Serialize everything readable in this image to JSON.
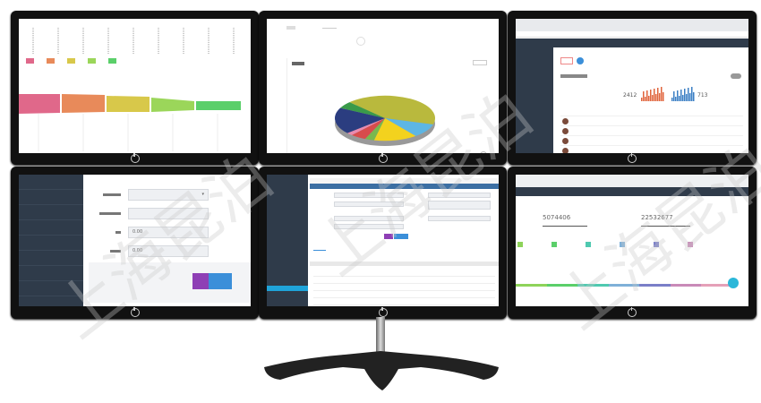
{
  "watermark": "上海昆泊",
  "monitor_tl": {
    "legend": [
      {
        "label": "",
        "color": "#e0688a"
      },
      {
        "label": "",
        "color": "#e88a5a"
      },
      {
        "label": "",
        "color": "#d8c84a"
      },
      {
        "label": "",
        "color": "#9bd65a"
      },
      {
        "label": "",
        "color": "#5bcf6a"
      }
    ]
  },
  "monitor_tc": {
    "pie_colors": [
      "#b9b93d",
      "#5db6e4",
      "#f3d21e",
      "#79b84e",
      "#d84c4c",
      "#e98bb0",
      "#2b3d80",
      "#3a9a4a"
    ],
    "pie_values": [
      42,
      10,
      14,
      3,
      5,
      2,
      19,
      5
    ]
  },
  "monitor_tr": {
    "stat_left": "2412",
    "stat_right": "713",
    "accent": "#3b8fd9"
  },
  "monitor_bl": {
    "field_values": [
      "",
      "",
      "0.00",
      "0.00"
    ],
    "btn_colors": [
      "#8e3fb5",
      "#3b8fd9"
    ]
  },
  "monitor_bc": {
    "btn_colors": [
      "#8e3fb5",
      "#3b8fd9"
    ]
  },
  "monitor_br": {
    "stat_1": "5074406",
    "stat_2": "22532677",
    "bar_colors": [
      "#8ed35a",
      "#5bcf6a",
      "#4fc9b0",
      "#7fb0d8",
      "#7a7fc8",
      "#c98ab8",
      "#e5a0b8"
    ]
  }
}
